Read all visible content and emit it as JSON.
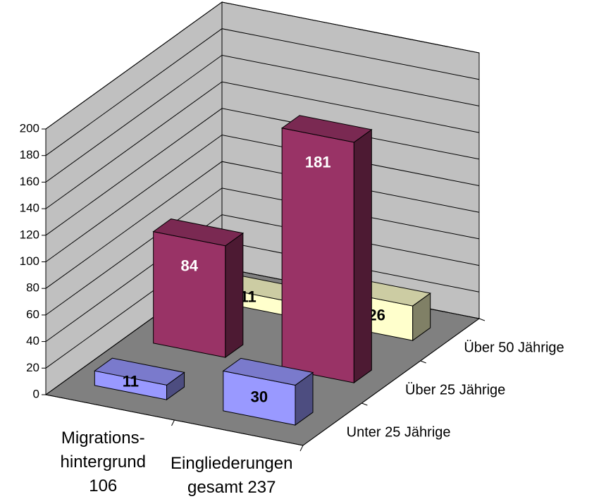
{
  "chart_data": {
    "type": "bar3d",
    "categories": [
      "Migrations-\nhintergrund\n106",
      "Eingliederungen\ngesamt 237"
    ],
    "series": [
      {
        "name": "Unter 25 Jährige",
        "color": "#9999ff",
        "values": [
          11,
          30
        ]
      },
      {
        "name": "Über 25 Jährige",
        "color": "#993366",
        "values": [
          84,
          181
        ]
      },
      {
        "name": "Über 50 Jährige",
        "color": "#ffffcc",
        "values": [
          11,
          26
        ]
      }
    ],
    "ylim": [
      0,
      200
    ],
    "yticks": [
      0,
      20,
      40,
      60,
      80,
      100,
      120,
      140,
      160,
      180,
      200
    ],
    "grid": true
  }
}
